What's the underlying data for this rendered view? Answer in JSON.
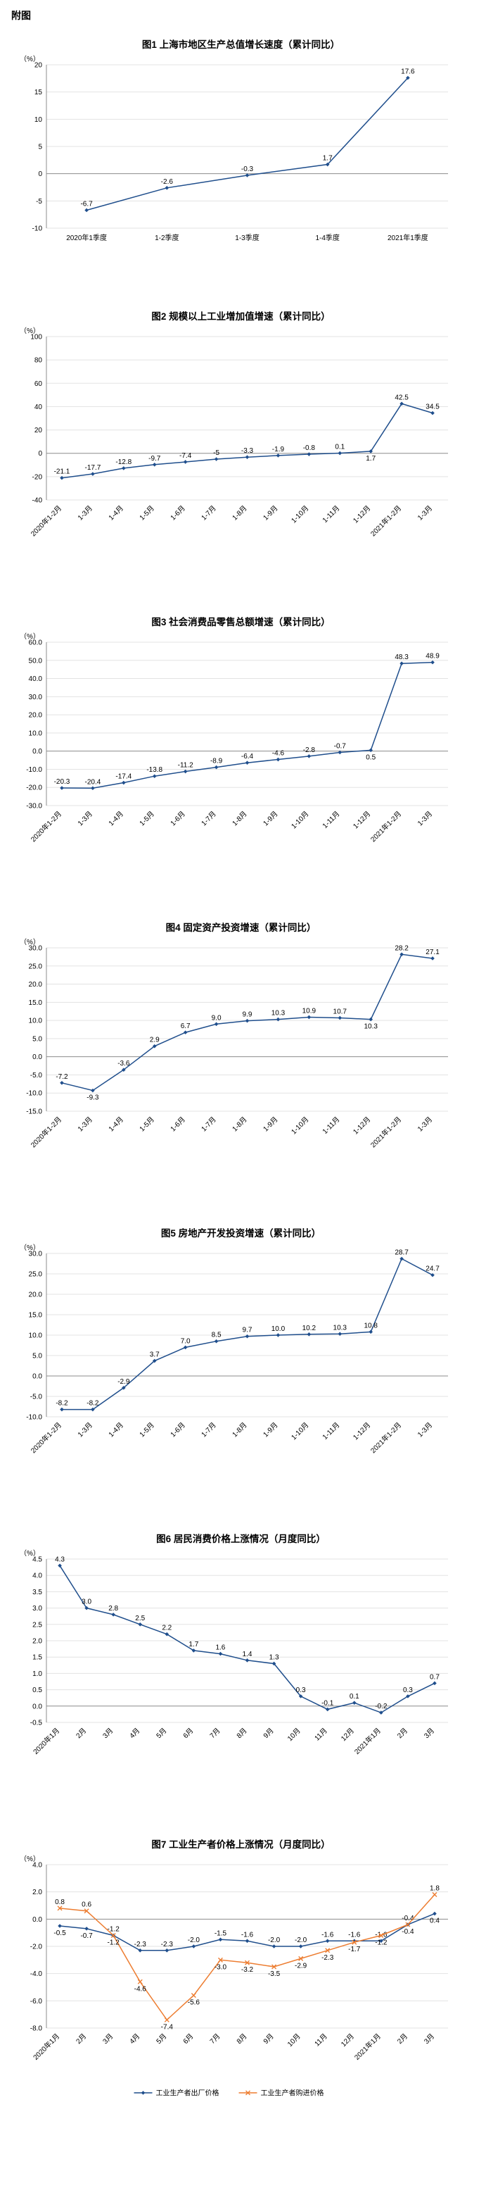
{
  "page": {
    "title": "附图"
  },
  "colors": {
    "line_blue": "#1F4E8C",
    "line_orange": "#ED7D31",
    "grid": "#E3E3E3",
    "axis": "#8C8C8C"
  },
  "chart_data": [
    {
      "type": "line",
      "title": "图1  上海市地区生产总值增长速度（累计同比）",
      "unit": "（%）",
      "categories": [
        "2020年1季度",
        "1-2季度",
        "1-3季度",
        "1-4季度",
        "2021年1季度"
      ],
      "ylim": [
        -10,
        20
      ],
      "yticks": [
        "20",
        "15",
        "10",
        "5",
        "0",
        "-5",
        "-10"
      ],
      "rotate_xlabels": false,
      "grid": true,
      "legend": false,
      "series": [
        {
          "color": "#1F4E8C",
          "marker": "diamond",
          "values": [
            -6.7,
            -2.6,
            -0.3,
            1.7,
            17.6
          ],
          "labels": [
            "-6.7",
            "-2.6",
            "-0.3",
            "1.7",
            "17.6"
          ],
          "label_side": "above"
        }
      ]
    },
    {
      "type": "line",
      "title": "图2  规模以上工业增加值增速（累计同比）",
      "unit": "（%）",
      "categories": [
        "2020年1-2月",
        "1-3月",
        "1-4月",
        "1-5月",
        "1-6月",
        "1-7月",
        "1-8月",
        "1-9月",
        "1-10月",
        "1-11月",
        "1-12月",
        "2021年1-2月",
        "1-3月"
      ],
      "ylim": [
        -40,
        100
      ],
      "yticks": [
        "100",
        "80",
        "60",
        "40",
        "20",
        "0",
        "-20",
        "-40"
      ],
      "rotate_xlabels": true,
      "grid": true,
      "legend": false,
      "series": [
        {
          "color": "#1F4E8C",
          "marker": "diamond",
          "values": [
            -21.1,
            -17.7,
            -12.8,
            -9.7,
            -7.4,
            -5,
            -3.3,
            -1.9,
            -0.8,
            0.1,
            1.7,
            42.5,
            34.5
          ],
          "labels": [
            "-21.1",
            "-17.7",
            "-12.8",
            "-9.7",
            "-7.4",
            "-5",
            "-3.3",
            "-1.9",
            "-0.8",
            "0.1",
            "1.7",
            "42.5",
            "34.5"
          ],
          "label_side": "above",
          "label_overrides": {
            "10": "below"
          }
        }
      ]
    },
    {
      "type": "line",
      "title": "图3  社会消费品零售总额增速（累计同比）",
      "unit": "（%）",
      "categories": [
        "2020年1-2月",
        "1-3月",
        "1-4月",
        "1-5月",
        "1-6月",
        "1-7月",
        "1-8月",
        "1-9月",
        "1-10月",
        "1-11月",
        "1-12月",
        "2021年1-2月",
        "1-3月"
      ],
      "ylim": [
        -30,
        60
      ],
      "yticks": [
        "60.0",
        "50.0",
        "40.0",
        "30.0",
        "20.0",
        "10.0",
        "0.0",
        "-10.0",
        "-20.0",
        "-30.0"
      ],
      "rotate_xlabels": true,
      "grid": true,
      "legend": false,
      "series": [
        {
          "color": "#1F4E8C",
          "marker": "diamond",
          "values": [
            -20.3,
            -20.4,
            -17.4,
            -13.8,
            -11.2,
            -8.9,
            -6.4,
            -4.6,
            -2.8,
            -0.7,
            0.5,
            48.3,
            48.9
          ],
          "labels": [
            "-20.3",
            "-20.4",
            "-17.4",
            "-13.8",
            "-11.2",
            "-8.9",
            "-6.4",
            "-4.6",
            "-2.8",
            "-0.7",
            "0.5",
            "48.3",
            "48.9"
          ],
          "label_side": "above",
          "label_overrides": {
            "10": "below"
          }
        }
      ]
    },
    {
      "type": "line",
      "title": "图4  固定资产投资增速（累计同比）",
      "unit": "（%）",
      "categories": [
        "2020年1-2月",
        "1-3月",
        "1-4月",
        "1-5月",
        "1-6月",
        "1-7月",
        "1-8月",
        "1-9月",
        "1-10月",
        "1-11月",
        "1-12月",
        "2021年1-2月",
        "1-3月"
      ],
      "ylim": [
        -15,
        30
      ],
      "yticks": [
        "30.0",
        "25.0",
        "20.0",
        "15.0",
        "10.0",
        "5.0",
        "0.0",
        "-5.0",
        "-10.0",
        "-15.0"
      ],
      "rotate_xlabels": true,
      "grid": true,
      "legend": false,
      "series": [
        {
          "color": "#1F4E8C",
          "marker": "diamond",
          "values": [
            -7.2,
            -9.3,
            -3.6,
            2.9,
            6.7,
            9.0,
            9.9,
            10.3,
            10.9,
            10.7,
            10.3,
            28.2,
            27.1
          ],
          "labels": [
            "-7.2",
            "-9.3",
            "-3.6",
            "2.9",
            "6.7",
            "9.0",
            "9.9",
            "10.3",
            "10.9",
            "10.7",
            "10.3",
            "28.2",
            "27.1"
          ],
          "label_side": "above",
          "label_overrides": {
            "1": "below",
            "10": "below"
          }
        }
      ]
    },
    {
      "type": "line",
      "title": "图5  房地产开发投资增速（累计同比）",
      "unit": "（%）",
      "categories": [
        "2020年1-2月",
        "1-3月",
        "1-4月",
        "1-5月",
        "1-6月",
        "1-7月",
        "1-8月",
        "1-9月",
        "1-10月",
        "1-11月",
        "1-12月",
        "2021年1-2月",
        "1-3月"
      ],
      "ylim": [
        -10,
        30
      ],
      "yticks": [
        "30.0",
        "25.0",
        "20.0",
        "15.0",
        "10.0",
        "5.0",
        "0.0",
        "-5.0",
        "-10.0"
      ],
      "rotate_xlabels": true,
      "grid": true,
      "legend": false,
      "series": [
        {
          "color": "#1F4E8C",
          "marker": "diamond",
          "values": [
            -8.2,
            -8.2,
            -2.9,
            3.7,
            7.0,
            8.5,
            9.7,
            10.0,
            10.2,
            10.3,
            10.8,
            28.7,
            24.7
          ],
          "labels": [
            "-8.2",
            "-8.2",
            "-2.9",
            "3.7",
            "7.0",
            "8.5",
            "9.7",
            "10.0",
            "10.2",
            "10.3",
            "10.8",
            "28.7",
            "24.7"
          ],
          "label_side": "above"
        }
      ]
    },
    {
      "type": "line",
      "title": "图6  居民消费价格上涨情况（月度同比）",
      "unit": "（%）",
      "categories": [
        "2020年1月",
        "2月",
        "3月",
        "4月",
        "5月",
        "6月",
        "7月",
        "8月",
        "9月",
        "10月",
        "11月",
        "12月",
        "2021年1月",
        "2月",
        "3月"
      ],
      "ylim": [
        -0.5,
        4.5
      ],
      "yticks": [
        "4.5",
        "4.0",
        "3.5",
        "3.0",
        "2.5",
        "2.0",
        "1.5",
        "1.0",
        "0.5",
        "0.0",
        "-0.5"
      ],
      "rotate_xlabels": true,
      "grid": true,
      "legend": false,
      "series": [
        {
          "color": "#1F4E8C",
          "marker": "diamond",
          "values": [
            4.3,
            3.0,
            2.8,
            2.5,
            2.2,
            1.7,
            1.6,
            1.4,
            1.3,
            0.3,
            -0.1,
            0.1,
            -0.2,
            0.3,
            0.7
          ],
          "labels": [
            "4.3",
            "3.0",
            "2.8",
            "2.5",
            "2.2",
            "1.7",
            "1.6",
            "1.4",
            "1.3",
            "0.3",
            "-0.1",
            "0.1",
            "-0.2",
            "0.3",
            "0.7"
          ],
          "label_side": "above"
        }
      ]
    },
    {
      "type": "line",
      "title": "图7  工业生产者价格上涨情况（月度同比）",
      "unit": "（%）",
      "categories": [
        "2020年1月",
        "2月",
        "3月",
        "4月",
        "5月",
        "6月",
        "7月",
        "8月",
        "9月",
        "10月",
        "11月",
        "12月",
        "2021年1月",
        "2月",
        "3月"
      ],
      "ylim": [
        -8,
        4
      ],
      "yticks": [
        "4.0",
        "2.0",
        "0.0",
        "-2.0",
        "-4.0",
        "-6.0",
        "-8.0"
      ],
      "rotate_xlabels": true,
      "grid": true,
      "legend": true,
      "legend_position": "bottom",
      "series": [
        {
          "name": "工业生产者出厂价格",
          "color": "#1F4E8C",
          "marker": "diamond",
          "values": [
            -0.5,
            -0.7,
            -1.2,
            -2.3,
            -2.3,
            -2.0,
            -1.5,
            -1.6,
            -2.0,
            -2.0,
            -1.6,
            -1.6,
            -1.6,
            -0.4,
            0.4
          ],
          "labels": [
            "-0.5",
            "-0.7",
            "-1.2",
            "-2.3",
            "-2.3",
            "-2.0",
            "-1.5",
            "-1.6",
            "-2.0",
            "-2.0",
            "-1.6",
            "-1.6",
            "-1.6",
            "-0.4",
            "0.4"
          ],
          "label_side": "above",
          "label_overrides": {
            "0": "below",
            "1": "below",
            "14": "below"
          }
        },
        {
          "name": "工业生产者购进价格",
          "color": "#ED7D31",
          "marker": "x",
          "values": [
            0.8,
            0.6,
            -1.2,
            -4.6,
            -7.4,
            -5.6,
            -3.0,
            -3.2,
            -3.5,
            -2.9,
            -2.3,
            -1.7,
            -1.2,
            -0.4,
            1.8
          ],
          "labels": [
            "0.8",
            "0.6",
            "-1.2",
            "-4.6",
            "-7.4",
            "-5.6",
            "-3.0",
            "-3.2",
            "-3.5",
            "-2.9",
            "-2.3",
            "-1.7",
            "-1.2",
            "-0.4",
            "1.8"
          ],
          "label_side": "below",
          "label_overrides": {
            "0": "above",
            "1": "above",
            "14": "above"
          }
        }
      ]
    }
  ]
}
